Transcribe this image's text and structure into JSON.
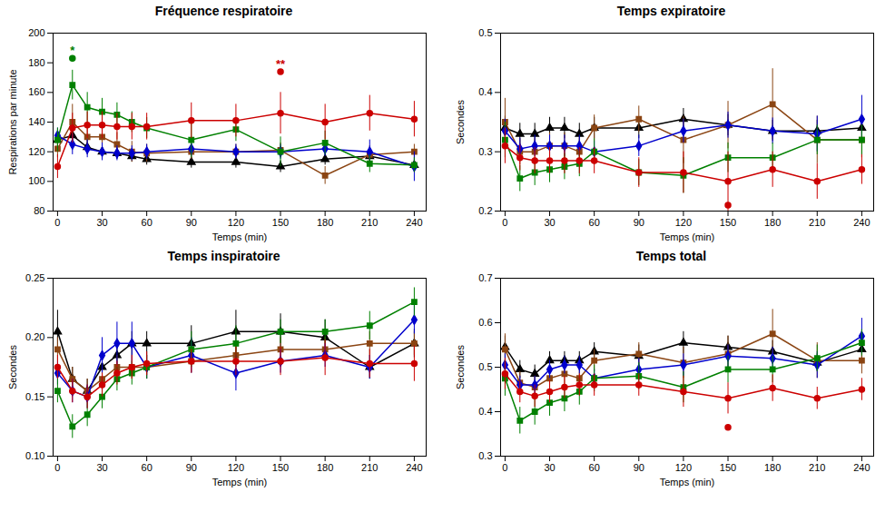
{
  "chart_data": [
    {
      "type": "line",
      "title": "Fréquence respiratoire",
      "xlabel": "Temps (min)",
      "ylabel": "Respirations par minute",
      "x": [
        0,
        10,
        20,
        30,
        40,
        50,
        60,
        90,
        120,
        150,
        180,
        210,
        240
      ],
      "xlim": [
        -3,
        248
      ],
      "xticks": [
        0,
        30,
        60,
        90,
        120,
        150,
        180,
        210,
        240
      ],
      "ylim": [
        80,
        200
      ],
      "yticks": [
        80,
        100,
        120,
        140,
        160,
        180,
        200
      ],
      "series": [
        {
          "color": "#000000",
          "marker": "triangle",
          "values": [
            128,
            131,
            123,
            120,
            119,
            117,
            115,
            113,
            113,
            110,
            115,
            117,
            111
          ],
          "errors": [
            5,
            6,
            5,
            4,
            4,
            4,
            4,
            4,
            4,
            4,
            4,
            4,
            4
          ]
        },
        {
          "color": "#8B4513",
          "marker": "square",
          "values": [
            122,
            140,
            130,
            130,
            125,
            120,
            119,
            120,
            120,
            121,
            104,
            118,
            120
          ],
          "errors": [
            6,
            12,
            10,
            9,
            8,
            7,
            6,
            5,
            5,
            5,
            6,
            6,
            5
          ]
        },
        {
          "color": "#0000CC",
          "marker": "diamond",
          "values": [
            131,
            125,
            122,
            120,
            119,
            119,
            120,
            122,
            120,
            120,
            122,
            120,
            110
          ],
          "errors": [
            5,
            7,
            6,
            6,
            5,
            5,
            5,
            5,
            5,
            5,
            5,
            8,
            10
          ]
        },
        {
          "color": "#008000",
          "marker": "square",
          "values": [
            128,
            165,
            150,
            147,
            145,
            140,
            136,
            128,
            135,
            120,
            126,
            112,
            111
          ],
          "errors": [
            8,
            10,
            10,
            9,
            8,
            7,
            7,
            12,
            8,
            10,
            8,
            6,
            5
          ]
        },
        {
          "color": "#CC0000",
          "marker": "circle",
          "values": [
            110,
            136,
            138,
            138,
            137,
            137,
            137,
            141,
            141,
            146,
            140,
            146,
            142
          ],
          "errors": [
            8,
            10,
            9,
            9,
            9,
            9,
            9,
            12,
            11,
            14,
            12,
            12,
            12
          ]
        }
      ],
      "points": [
        {
          "x": 10,
          "y": 183,
          "color": "#008000"
        },
        {
          "x": 150,
          "y": 174,
          "color": "#CC0000"
        }
      ],
      "annotations": [
        {
          "text": "*",
          "x": 10,
          "y": 183,
          "color": "#008000"
        },
        {
          "text": "**",
          "x": 150,
          "y": 174,
          "color": "#CC0000"
        }
      ]
    },
    {
      "type": "line",
      "title": "Temps expiratoire",
      "xlabel": "Temps (min)",
      "ylabel": "Secondes",
      "x": [
        0,
        10,
        20,
        30,
        40,
        50,
        60,
        90,
        120,
        150,
        180,
        210,
        240
      ],
      "xlim": [
        -3,
        248
      ],
      "xticks": [
        0,
        30,
        60,
        90,
        120,
        150,
        180,
        210,
        240
      ],
      "ylim": [
        0.2,
        0.5
      ],
      "yticks": [
        0.2,
        0.3,
        0.4,
        0.5
      ],
      "series": [
        {
          "color": "#000000",
          "marker": "triangle",
          "values": [
            0.34,
            0.33,
            0.33,
            0.34,
            0.34,
            0.33,
            0.34,
            0.34,
            0.355,
            0.345,
            0.335,
            0.335,
            0.34
          ],
          "errors": [
            0.02,
            0.018,
            0.018,
            0.018,
            0.018,
            0.018,
            0.018,
            0.018,
            0.018,
            0.018,
            0.018,
            0.018,
            0.018
          ]
        },
        {
          "color": "#8B4513",
          "marker": "square",
          "values": [
            0.35,
            0.3,
            0.3,
            0.31,
            0.31,
            0.3,
            0.34,
            0.355,
            0.32,
            0.345,
            0.38,
            0.32,
            0.32
          ],
          "errors": [
            0.04,
            0.022,
            0.022,
            0.022,
            0.022,
            0.022,
            0.022,
            0.022,
            0.04,
            0.04,
            0.06,
            0.04,
            0.03
          ]
        },
        {
          "color": "#0000CC",
          "marker": "diamond",
          "values": [
            0.335,
            0.305,
            0.31,
            0.31,
            0.31,
            0.31,
            0.3,
            0.31,
            0.335,
            0.345,
            0.335,
            0.33,
            0.355
          ],
          "errors": [
            0.02,
            0.018,
            0.018,
            0.018,
            0.018,
            0.018,
            0.018,
            0.018,
            0.02,
            0.022,
            0.022,
            0.03,
            0.04
          ]
        },
        {
          "color": "#008000",
          "marker": "square",
          "values": [
            0.32,
            0.255,
            0.265,
            0.27,
            0.275,
            0.28,
            0.3,
            0.265,
            0.26,
            0.29,
            0.29,
            0.32,
            0.32
          ],
          "errors": [
            0.03,
            0.022,
            0.022,
            0.022,
            0.022,
            0.022,
            0.022,
            0.022,
            0.03,
            0.025,
            0.025,
            0.025,
            0.025
          ]
        },
        {
          "color": "#CC0000",
          "marker": "circle",
          "values": [
            0.31,
            0.29,
            0.285,
            0.285,
            0.285,
            0.285,
            0.285,
            0.265,
            0.265,
            0.25,
            0.27,
            0.25,
            0.27
          ],
          "errors": [
            0.03,
            0.022,
            0.022,
            0.022,
            0.022,
            0.022,
            0.022,
            0.025,
            0.035,
            0.05,
            0.03,
            0.03,
            0.025
          ]
        }
      ],
      "points": [
        {
          "x": 150,
          "y": 0.21,
          "color": "#CC0000"
        }
      ]
    },
    {
      "type": "line",
      "title": "Temps inspiratoire",
      "xlabel": "Temps (min)",
      "ylabel": "Secondes",
      "x": [
        0,
        10,
        20,
        30,
        40,
        50,
        60,
        90,
        120,
        150,
        180,
        210,
        240
      ],
      "xlim": [
        -3,
        248
      ],
      "xticks": [
        0,
        30,
        60,
        90,
        120,
        150,
        180,
        210,
        240
      ],
      "ylim": [
        0.1,
        0.25
      ],
      "yticks": [
        {
          "value": 0.1,
          "label": "0.10"
        },
        0.15,
        {
          "value": 0.2,
          "label": "0.20"
        },
        0.25
      ],
      "series": [
        {
          "color": "#000000",
          "marker": "triangle",
          "values": [
            0.205,
            0.165,
            0.155,
            0.175,
            0.185,
            0.195,
            0.195,
            0.195,
            0.205,
            0.205,
            0.2,
            0.175,
            0.195
          ],
          "errors": [
            0.018,
            0.01,
            0.01,
            0.01,
            0.01,
            0.01,
            0.01,
            0.015,
            0.018,
            0.015,
            0.015,
            0.01,
            0.012
          ]
        },
        {
          "color": "#8B4513",
          "marker": "square",
          "values": [
            0.19,
            0.165,
            0.155,
            0.165,
            0.175,
            0.175,
            0.175,
            0.18,
            0.185,
            0.19,
            0.19,
            0.195,
            0.195
          ],
          "errors": [
            0.01,
            0.01,
            0.01,
            0.01,
            0.01,
            0.01,
            0.01,
            0.01,
            0.01,
            0.01,
            0.01,
            0.01,
            0.01
          ]
        },
        {
          "color": "#0000CC",
          "marker": "diamond",
          "values": [
            0.17,
            0.155,
            0.15,
            0.185,
            0.195,
            0.195,
            0.175,
            0.185,
            0.17,
            0.18,
            0.185,
            0.175,
            0.215
          ],
          "errors": [
            0.01,
            0.01,
            0.01,
            0.015,
            0.018,
            0.018,
            0.01,
            0.015,
            0.015,
            0.01,
            0.01,
            0.01,
            0.012
          ]
        },
        {
          "color": "#008000",
          "marker": "square",
          "values": [
            0.155,
            0.125,
            0.135,
            0.15,
            0.165,
            0.17,
            0.175,
            0.19,
            0.195,
            0.205,
            0.205,
            0.21,
            0.23
          ],
          "errors": [
            0.01,
            0.01,
            0.01,
            0.01,
            0.01,
            0.01,
            0.01,
            0.015,
            0.015,
            0.01,
            0.01,
            0.012,
            0.012
          ]
        },
        {
          "color": "#CC0000",
          "marker": "circle",
          "values": [
            0.175,
            0.155,
            0.15,
            0.16,
            0.17,
            0.175,
            0.178,
            0.18,
            0.18,
            0.18,
            0.183,
            0.178,
            0.178
          ],
          "errors": [
            0.01,
            0.01,
            0.01,
            0.01,
            0.01,
            0.01,
            0.01,
            0.01,
            0.012,
            0.012,
            0.015,
            0.012,
            0.015
          ]
        }
      ]
    },
    {
      "type": "line",
      "title": "Temps total",
      "xlabel": "Temps (min)",
      "ylabel": "Secondes",
      "x": [
        0,
        10,
        20,
        30,
        40,
        50,
        60,
        90,
        120,
        150,
        180,
        210,
        240
      ],
      "xlim": [
        -3,
        248
      ],
      "xticks": [
        0,
        30,
        60,
        90,
        120,
        150,
        180,
        210,
        240
      ],
      "ylim": [
        0.3,
        0.7
      ],
      "yticks": [
        0.3,
        0.4,
        0.5,
        0.6,
        0.7
      ],
      "series": [
        {
          "color": "#000000",
          "marker": "triangle",
          "values": [
            0.545,
            0.495,
            0.485,
            0.515,
            0.515,
            0.515,
            0.535,
            0.525,
            0.555,
            0.545,
            0.535,
            0.51,
            0.54
          ],
          "errors": [
            0.025,
            0.02,
            0.02,
            0.02,
            0.02,
            0.02,
            0.02,
            0.025,
            0.025,
            0.025,
            0.025,
            0.02,
            0.025
          ]
        },
        {
          "color": "#8B4513",
          "marker": "square",
          "values": [
            0.54,
            0.465,
            0.455,
            0.475,
            0.485,
            0.475,
            0.515,
            0.53,
            0.51,
            0.53,
            0.575,
            0.515,
            0.515
          ],
          "errors": [
            0.035,
            0.025,
            0.025,
            0.025,
            0.025,
            0.025,
            0.025,
            0.025,
            0.035,
            0.04,
            0.055,
            0.04,
            0.03
          ]
        },
        {
          "color": "#0000CC",
          "marker": "diamond",
          "values": [
            0.505,
            0.46,
            0.46,
            0.495,
            0.505,
            0.505,
            0.475,
            0.495,
            0.505,
            0.525,
            0.52,
            0.505,
            0.57
          ],
          "errors": [
            0.025,
            0.02,
            0.02,
            0.02,
            0.02,
            0.02,
            0.02,
            0.025,
            0.025,
            0.025,
            0.025,
            0.03,
            0.04
          ]
        },
        {
          "color": "#008000",
          "marker": "square",
          "values": [
            0.475,
            0.38,
            0.4,
            0.42,
            0.43,
            0.445,
            0.475,
            0.48,
            0.455,
            0.495,
            0.495,
            0.52,
            0.555
          ],
          "errors": [
            0.04,
            0.03,
            0.03,
            0.03,
            0.03,
            0.03,
            0.03,
            0.03,
            0.035,
            0.03,
            0.03,
            0.03,
            0.03
          ]
        },
        {
          "color": "#CC0000",
          "marker": "circle",
          "values": [
            0.485,
            0.445,
            0.435,
            0.445,
            0.455,
            0.46,
            0.46,
            0.46,
            0.445,
            0.43,
            0.453,
            0.43,
            0.45
          ],
          "errors": [
            0.035,
            0.025,
            0.025,
            0.025,
            0.025,
            0.025,
            0.025,
            0.025,
            0.035,
            0.035,
            0.03,
            0.025,
            0.025
          ]
        }
      ],
      "points": [
        {
          "x": 150,
          "y": 0.365,
          "color": "#CC0000"
        }
      ]
    }
  ]
}
